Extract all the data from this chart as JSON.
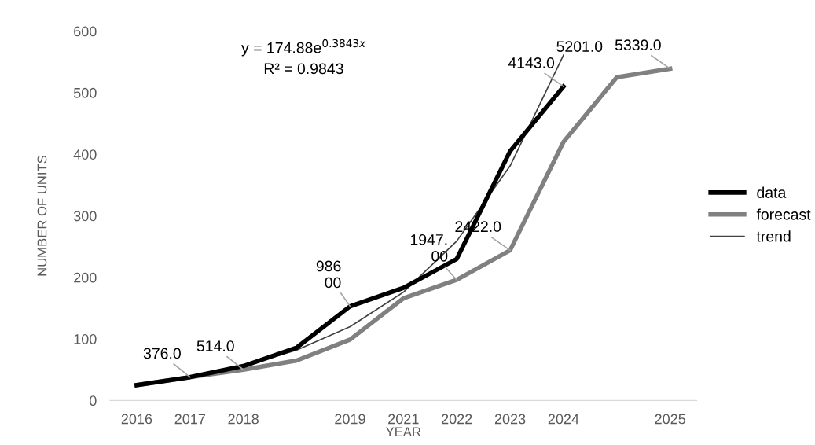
{
  "chart_data": {
    "type": "line",
    "xlabel": "YEAR",
    "ylabel": "NUMBER OF UNITS",
    "categories": [
      "2016",
      "2017",
      "2018",
      null,
      "2019",
      "2021",
      "2022",
      "2023",
      "2024",
      null,
      "2025"
    ],
    "ylim": [
      0,
      600
    ],
    "yticks": [
      0,
      100,
      200,
      300,
      400,
      500,
      600
    ],
    "series": [
      {
        "name": "data",
        "color": "#000000",
        "values": [
          25,
          38,
          56,
          86,
          153,
          183,
          230,
          405,
          510,
          null,
          null
        ]
      },
      {
        "name": "forecast",
        "color": "#808080",
        "values": [
          25,
          38,
          50,
          65,
          99,
          166,
          196,
          244,
          420,
          525,
          539
        ]
      },
      {
        "name": "trend",
        "color": "#404040",
        "values": [
          26,
          38,
          56,
          82,
          120,
          176,
          259,
          381,
          561,
          null,
          null
        ]
      }
    ],
    "annotations": [
      "y = 174.88e$^{0.3843x}$",
      "R² = 0.9843",
      {
        "text": "376.0",
        "x": "2017",
        "y": 38
      },
      {
        "text": "514.0",
        "x": "2018",
        "y": 50
      },
      {
        "text": "986\n00",
        "x": "2019",
        "y": 153
      },
      {
        "text": "1947.\n00",
        "x": "2022",
        "y": 196
      },
      {
        "text": "2422.0",
        "x": "2023",
        "y": 244
      },
      {
        "text": "4143.0",
        "x": "2024",
        "y": 510
      },
      "5201.0",
      {
        "text": "5339.0",
        "x": "2025",
        "y": 539
      }
    ],
    "legend": "right",
    "grid": false,
    "marker": "none",
    "line_style": "solid"
  }
}
